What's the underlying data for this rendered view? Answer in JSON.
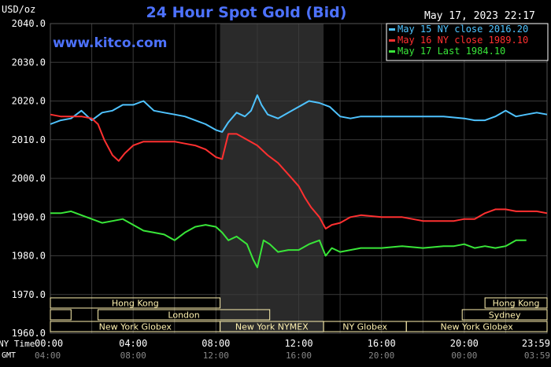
{
  "header": {
    "units": "USD/oz",
    "title": "24 Hour Spot Gold (Bid)",
    "timestamp": "May 17, 2023 22:17",
    "site": "www.kitco.com"
  },
  "colors": {
    "background": "#000000",
    "grid": "#3a3a3a",
    "axis_text": "#ffffff",
    "title": "#4d72ff",
    "site": "#4d72ff",
    "market_band": "#fff2b0",
    "market_text": "#000000",
    "shade": "#2a2a2a"
  },
  "legend": {
    "entries": [
      {
        "label": "May 15 NY close 2016.20",
        "color": "#4fc3ff"
      },
      {
        "label": "May 16 NY close 1989.10",
        "color": "#ff3030"
      },
      {
        "label": "May 17 Last 1984.10",
        "color": "#39e639"
      }
    ]
  },
  "markets": {
    "row1": [
      {
        "label": "Hong Kong",
        "start": 0,
        "end": 8.2
      },
      {
        "label": "Hong Kong",
        "start": 21,
        "end": 24
      }
    ],
    "row2": [
      {
        "label": "",
        "start": 0,
        "end": 1
      },
      {
        "label": "London",
        "start": 2.3,
        "end": 10.6
      },
      {
        "label": "Sydney",
        "start": 19.9,
        "end": 24
      }
    ],
    "row3": [
      {
        "label": "New York Globex",
        "start": 0,
        "end": 8.2
      },
      {
        "label": "New York NYMEX",
        "start": 8.2,
        "end": 13.2
      },
      {
        "label": "NY Globex",
        "start": 13.2,
        "end": 17.2
      },
      {
        "label": "New York Globex",
        "start": 17.2,
        "end": 24
      }
    ]
  },
  "axes": {
    "ny_time_label": "NY Time",
    "gmt_label": "GMT",
    "ny_ticks": [
      "00:00",
      "04:00",
      "08:00",
      "12:00",
      "16:00",
      "20:00",
      "23:59"
    ],
    "gmt_ticks": [
      "04:00",
      "08:00",
      "12:00",
      "16:00",
      "20:00",
      "00:00",
      "03:59"
    ]
  },
  "chart_data": {
    "type": "line",
    "ylabel": "USD/oz",
    "ylim": [
      1960,
      2040
    ],
    "yticks": [
      1960,
      1970,
      1980,
      1990,
      2000,
      2010,
      2020,
      2030,
      2040
    ],
    "xlim": [
      0,
      24
    ],
    "shaded_x": [
      8.2,
      13.2
    ],
    "grid": true,
    "legend_position": "top-right",
    "series": [
      {
        "name": "May 15 NY close 2016.20",
        "color": "#4fc3ff",
        "x": [
          0,
          0.5,
          1,
          1.5,
          1.8,
          2,
          2.5,
          3,
          3.5,
          4,
          4.5,
          5,
          5.5,
          6,
          6.5,
          7,
          7.5,
          8,
          8.3,
          8.6,
          9,
          9.4,
          9.7,
          10,
          10.2,
          10.5,
          11,
          11.5,
          12,
          12.5,
          13,
          13.5,
          14,
          14.5,
          15,
          16,
          17,
          18,
          19,
          20,
          20.5,
          21,
          21.5,
          22,
          22.5,
          23,
          23.5,
          24
        ],
        "y": [
          2014,
          2015,
          2015.5,
          2017.5,
          2016,
          2015,
          2017,
          2017.5,
          2019,
          2019,
          2020,
          2017.5,
          2017,
          2016.5,
          2016,
          2015,
          2014,
          2012.5,
          2012,
          2014.5,
          2017,
          2016,
          2017.5,
          2021.5,
          2019,
          2016.5,
          2015.5,
          2017,
          2018.5,
          2020,
          2019.5,
          2018.5,
          2016,
          2015.5,
          2016,
          2016,
          2016,
          2016,
          2016,
          2015.5,
          2015,
          2015,
          2016,
          2017.5,
          2016,
          2016.5,
          2017,
          2016.5
        ]
      },
      {
        "name": "May 16 NY close 1989.10",
        "color": "#ff3030",
        "x": [
          0,
          0.5,
          1,
          1.5,
          2,
          2.3,
          2.6,
          3,
          3.3,
          3.6,
          4,
          4.5,
          5,
          5.5,
          6,
          6.5,
          7,
          7.5,
          8,
          8.3,
          8.6,
          9,
          9.5,
          10,
          10.5,
          11,
          11.5,
          12,
          12.3,
          12.6,
          13,
          13.3,
          13.6,
          14,
          14.5,
          15,
          16,
          17,
          18,
          19,
          19.5,
          20,
          20.5,
          21,
          21.5,
          22,
          22.5,
          23,
          23.5,
          24
        ],
        "y": [
          2016.5,
          2016,
          2016,
          2016,
          2015.5,
          2014,
          2010,
          2006,
          2004.5,
          2006.5,
          2008.5,
          2009.5,
          2009.5,
          2009.5,
          2009.5,
          2009,
          2008.5,
          2007.5,
          2005.5,
          2005,
          2011.5,
          2011.5,
          2010,
          2008.5,
          2006,
          2004,
          2001,
          1998,
          1995,
          1992.5,
          1990,
          1987,
          1988,
          1988.5,
          1990,
          1990.5,
          1990,
          1990,
          1989,
          1989,
          1989,
          1989.5,
          1989.5,
          1991,
          1992,
          1992,
          1991.5,
          1991.5,
          1991.5,
          1991
        ]
      },
      {
        "name": "May 17 Last 1984.10",
        "color": "#39e639",
        "x": [
          0,
          0.5,
          1,
          1.5,
          2,
          2.5,
          3,
          3.5,
          4,
          4.5,
          5,
          5.5,
          6,
          6.5,
          7,
          7.5,
          8,
          8.3,
          8.6,
          9,
          9.5,
          9.8,
          10,
          10.3,
          10.6,
          11,
          11.5,
          12,
          12.5,
          13,
          13.3,
          13.6,
          14,
          14.5,
          15,
          16,
          17,
          18,
          19,
          19.5,
          20,
          20.5,
          21,
          21.5,
          22,
          22.5,
          23
        ],
        "y": [
          1991,
          1991,
          1991.5,
          1990.5,
          1989.5,
          1988.5,
          1989,
          1989.5,
          1988,
          1986.5,
          1986,
          1985.5,
          1984,
          1986,
          1987.5,
          1988,
          1987.5,
          1986,
          1984,
          1985,
          1983,
          1979,
          1977,
          1984,
          1983,
          1981,
          1981.5,
          1981.5,
          1983,
          1984,
          1980,
          1982,
          1981,
          1981.5,
          1982,
          1982,
          1982.5,
          1982,
          1982.5,
          1982.5,
          1983,
          1982,
          1982.5,
          1982,
          1982.5,
          1984,
          1984
        ]
      }
    ]
  }
}
